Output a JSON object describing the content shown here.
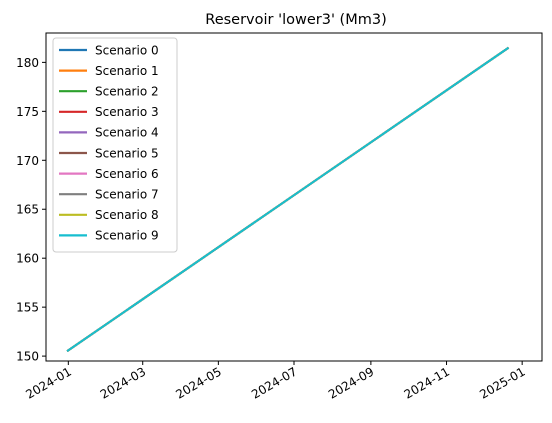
{
  "chart_data": {
    "type": "line",
    "title": "Reservoir 'lower3' (Mm3)",
    "xlabel": "",
    "ylabel": "",
    "x_ticks": [
      "2024-01",
      "2024-03",
      "2024-05",
      "2024-07",
      "2024-09",
      "2024-11",
      "2025-01"
    ],
    "y_ticks": [
      150,
      155,
      160,
      165,
      170,
      175,
      180
    ],
    "xlim": [
      "2023-12-14",
      "2025-01-17"
    ],
    "ylim": [
      149.5,
      183.0
    ],
    "grid": false,
    "legend_position": "upper left",
    "x": [
      "2023-12-31",
      "2024-12-21"
    ],
    "series": [
      {
        "name": "Scenario 0",
        "color": "#1f77b4",
        "values": [
          150.5,
          181.5
        ]
      },
      {
        "name": "Scenario 1",
        "color": "#ff7f0e",
        "values": [
          150.5,
          181.5
        ]
      },
      {
        "name": "Scenario 2",
        "color": "#2ca02c",
        "values": [
          150.5,
          181.5
        ]
      },
      {
        "name": "Scenario 3",
        "color": "#d62728",
        "values": [
          150.5,
          181.5
        ]
      },
      {
        "name": "Scenario 4",
        "color": "#9467bd",
        "values": [
          150.5,
          181.5
        ]
      },
      {
        "name": "Scenario 5",
        "color": "#8c564b",
        "values": [
          150.5,
          181.5
        ]
      },
      {
        "name": "Scenario 6",
        "color": "#e377c2",
        "values": [
          150.5,
          181.5
        ]
      },
      {
        "name": "Scenario 7",
        "color": "#7f7f7f",
        "values": [
          150.5,
          181.5
        ]
      },
      {
        "name": "Scenario 8",
        "color": "#bcbd22",
        "values": [
          150.5,
          181.5
        ]
      },
      {
        "name": "Scenario 9",
        "color": "#17becf",
        "values": [
          150.5,
          181.5
        ]
      }
    ]
  }
}
